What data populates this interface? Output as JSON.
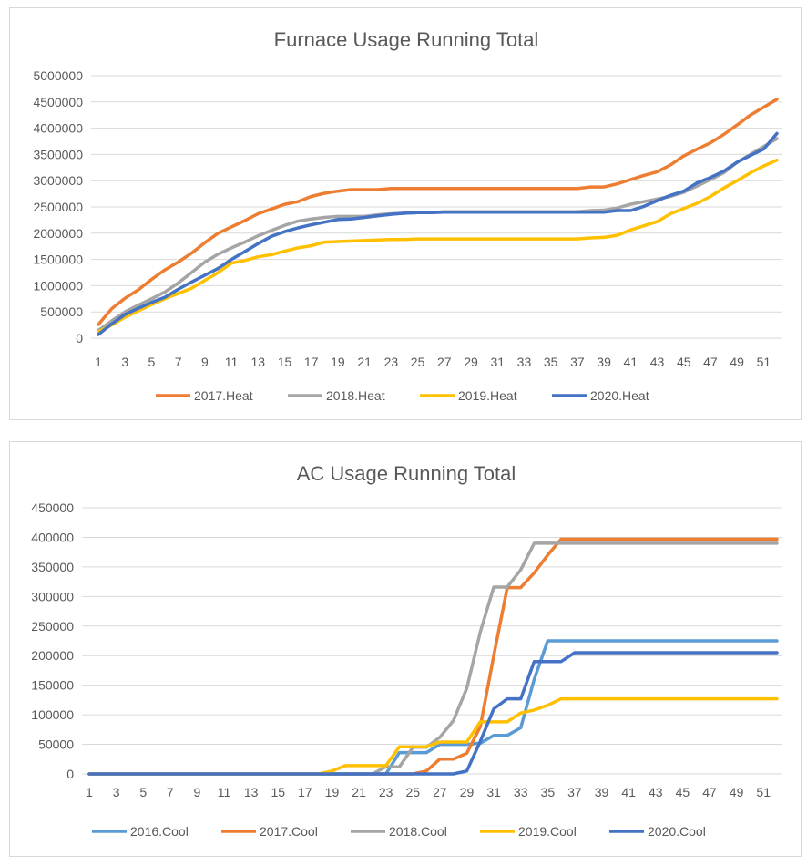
{
  "colors": {
    "2016": "#5b9bd5",
    "2017": "#ed7d31",
    "2018": "#a5a5a5",
    "2019": "#ffc000",
    "2020": "#4472c4",
    "grid": "#d9d9d9",
    "text": "#595959"
  },
  "chart_data": [
    {
      "type": "line",
      "title": "Furnace Usage Running Total",
      "x": [
        1,
        2,
        3,
        4,
        5,
        6,
        7,
        8,
        9,
        10,
        11,
        12,
        13,
        14,
        15,
        16,
        17,
        18,
        19,
        20,
        21,
        22,
        23,
        24,
        25,
        26,
        27,
        28,
        29,
        30,
        31,
        32,
        33,
        34,
        35,
        36,
        37,
        38,
        39,
        40,
        41,
        42,
        43,
        44,
        45,
        46,
        47,
        48,
        49,
        50,
        51,
        52
      ],
      "x_tick_labels": [
        "1",
        "3",
        "5",
        "7",
        "9",
        "11",
        "13",
        "15",
        "17",
        "19",
        "21",
        "23",
        "25",
        "27",
        "29",
        "31",
        "33",
        "35",
        "37",
        "39",
        "41",
        "43",
        "45",
        "47",
        "49",
        "51"
      ],
      "y_tick_labels": [
        "0",
        "500000",
        "1000000",
        "1500000",
        "2000000",
        "2500000",
        "3000000",
        "3500000",
        "4000000",
        "4500000",
        "5000000"
      ],
      "ylim": [
        0,
        5000000
      ],
      "grid": true,
      "legend": "bottom",
      "series": [
        {
          "name": "2017.Heat",
          "color_key": "2017",
          "values": [
            260000,
            560000,
            760000,
            920000,
            1120000,
            1300000,
            1450000,
            1620000,
            1820000,
            2000000,
            2120000,
            2240000,
            2370000,
            2460000,
            2550000,
            2600000,
            2700000,
            2760000,
            2800000,
            2830000,
            2830000,
            2830000,
            2850000,
            2850000,
            2850000,
            2850000,
            2850000,
            2850000,
            2850000,
            2850000,
            2850000,
            2850000,
            2850000,
            2850000,
            2850000,
            2850000,
            2850000,
            2880000,
            2880000,
            2940000,
            3020000,
            3100000,
            3170000,
            3300000,
            3470000,
            3600000,
            3720000,
            3880000,
            4060000,
            4250000,
            4400000,
            4550000
          ]
        },
        {
          "name": "2018.Heat",
          "color_key": "2018",
          "values": [
            150000,
            330000,
            500000,
            630000,
            750000,
            880000,
            1050000,
            1250000,
            1450000,
            1600000,
            1720000,
            1830000,
            1950000,
            2050000,
            2150000,
            2230000,
            2270000,
            2300000,
            2320000,
            2320000,
            2320000,
            2350000,
            2370000,
            2380000,
            2390000,
            2390000,
            2410000,
            2410000,
            2410000,
            2410000,
            2410000,
            2410000,
            2410000,
            2410000,
            2410000,
            2410000,
            2410000,
            2430000,
            2440000,
            2480000,
            2550000,
            2600000,
            2650000,
            2700000,
            2780000,
            2900000,
            3020000,
            3150000,
            3350000,
            3500000,
            3650000,
            3800000
          ]
        },
        {
          "name": "2019.Heat",
          "color_key": "2019",
          "values": [
            120000,
            250000,
            400000,
            520000,
            640000,
            750000,
            850000,
            950000,
            1100000,
            1250000,
            1430000,
            1480000,
            1550000,
            1590000,
            1660000,
            1720000,
            1760000,
            1830000,
            1840000,
            1850000,
            1860000,
            1870000,
            1880000,
            1880000,
            1890000,
            1890000,
            1890000,
            1890000,
            1890000,
            1890000,
            1890000,
            1890000,
            1890000,
            1890000,
            1890000,
            1890000,
            1890000,
            1910000,
            1920000,
            1960000,
            2060000,
            2140000,
            2220000,
            2370000,
            2470000,
            2570000,
            2700000,
            2860000,
            3000000,
            3150000,
            3280000,
            3390000
          ]
        },
        {
          "name": "2020.Heat",
          "color_key": "2020",
          "values": [
            70000,
            270000,
            450000,
            570000,
            680000,
            780000,
            930000,
            1070000,
            1200000,
            1330000,
            1500000,
            1650000,
            1800000,
            1940000,
            2030000,
            2100000,
            2160000,
            2210000,
            2260000,
            2270000,
            2300000,
            2330000,
            2360000,
            2380000,
            2390000,
            2390000,
            2400000,
            2400000,
            2400000,
            2400000,
            2400000,
            2400000,
            2400000,
            2400000,
            2400000,
            2400000,
            2400000,
            2400000,
            2400000,
            2430000,
            2430000,
            2510000,
            2620000,
            2720000,
            2800000,
            2960000,
            3060000,
            3180000,
            3350000,
            3480000,
            3600000,
            3900000
          ]
        }
      ]
    },
    {
      "type": "line",
      "title": "AC Usage Running Total",
      "x": [
        1,
        2,
        3,
        4,
        5,
        6,
        7,
        8,
        9,
        10,
        11,
        12,
        13,
        14,
        15,
        16,
        17,
        18,
        19,
        20,
        21,
        22,
        23,
        24,
        25,
        26,
        27,
        28,
        29,
        30,
        31,
        32,
        33,
        34,
        35,
        36,
        37,
        38,
        39,
        40,
        41,
        42,
        43,
        44,
        45,
        46,
        47,
        48,
        49,
        50,
        51,
        52
      ],
      "x_tick_labels": [
        "1",
        "3",
        "5",
        "7",
        "9",
        "11",
        "13",
        "15",
        "17",
        "19",
        "21",
        "23",
        "25",
        "27",
        "29",
        "31",
        "33",
        "35",
        "37",
        "39",
        "41",
        "43",
        "45",
        "47",
        "49",
        "51"
      ],
      "y_tick_labels": [
        "0",
        "50000",
        "100000",
        "150000",
        "200000",
        "250000",
        "300000",
        "350000",
        "400000",
        "450000"
      ],
      "ylim": [
        0,
        450000
      ],
      "grid": true,
      "legend": "bottom",
      "series": [
        {
          "name": "2016.Cool",
          "color_key": "2016",
          "values": [
            0,
            0,
            0,
            0,
            0,
            0,
            0,
            0,
            0,
            0,
            0,
            0,
            0,
            0,
            0,
            0,
            0,
            0,
            0,
            0,
            0,
            0,
            0,
            36000,
            36000,
            36000,
            50000,
            50000,
            50000,
            52000,
            65000,
            65000,
            78000,
            160000,
            225000,
            225000,
            225000,
            225000,
            225000,
            225000,
            225000,
            225000,
            225000,
            225000,
            225000,
            225000,
            225000,
            225000,
            225000,
            225000,
            225000,
            225000
          ]
        },
        {
          "name": "2017.Cool",
          "color_key": "2017",
          "values": [
            0,
            0,
            0,
            0,
            0,
            0,
            0,
            0,
            0,
            0,
            0,
            0,
            0,
            0,
            0,
            0,
            0,
            0,
            0,
            0,
            0,
            0,
            0,
            0,
            0,
            5000,
            25000,
            25000,
            35000,
            80000,
            200000,
            315000,
            315000,
            340000,
            370000,
            397000,
            397000,
            397000,
            397000,
            397000,
            397000,
            397000,
            397000,
            397000,
            397000,
            397000,
            397000,
            397000,
            397000,
            397000,
            397000,
            397000
          ]
        },
        {
          "name": "2018.Cool",
          "color_key": "2018",
          "values": [
            0,
            0,
            0,
            0,
            0,
            0,
            0,
            0,
            0,
            0,
            0,
            0,
            0,
            0,
            0,
            0,
            0,
            0,
            0,
            0,
            0,
            0,
            12000,
            12000,
            45000,
            45000,
            62000,
            90000,
            145000,
            240000,
            316000,
            316000,
            345000,
            390000,
            390000,
            390000,
            390000,
            390000,
            390000,
            390000,
            390000,
            390000,
            390000,
            390000,
            390000,
            390000,
            390000,
            390000,
            390000,
            390000,
            390000,
            390000
          ]
        },
        {
          "name": "2019.Cool",
          "color_key": "2019",
          "values": [
            0,
            0,
            0,
            0,
            0,
            0,
            0,
            0,
            0,
            0,
            0,
            0,
            0,
            0,
            0,
            0,
            0,
            0,
            5000,
            14000,
            14000,
            14000,
            14000,
            46000,
            46000,
            46000,
            54000,
            54000,
            54000,
            88000,
            88000,
            88000,
            103000,
            108000,
            116000,
            127000,
            127000,
            127000,
            127000,
            127000,
            127000,
            127000,
            127000,
            127000,
            127000,
            127000,
            127000,
            127000,
            127000,
            127000,
            127000,
            127000
          ]
        },
        {
          "name": "2020.Cool",
          "color_key": "2020",
          "values": [
            0,
            0,
            0,
            0,
            0,
            0,
            0,
            0,
            0,
            0,
            0,
            0,
            0,
            0,
            0,
            0,
            0,
            0,
            0,
            0,
            0,
            0,
            0,
            0,
            0,
            0,
            0,
            0,
            5000,
            55000,
            110000,
            127000,
            127000,
            190000,
            190000,
            190000,
            205000,
            205000,
            205000,
            205000,
            205000,
            205000,
            205000,
            205000,
            205000,
            205000,
            205000,
            205000,
            205000,
            205000,
            205000,
            205000
          ]
        }
      ]
    }
  ]
}
